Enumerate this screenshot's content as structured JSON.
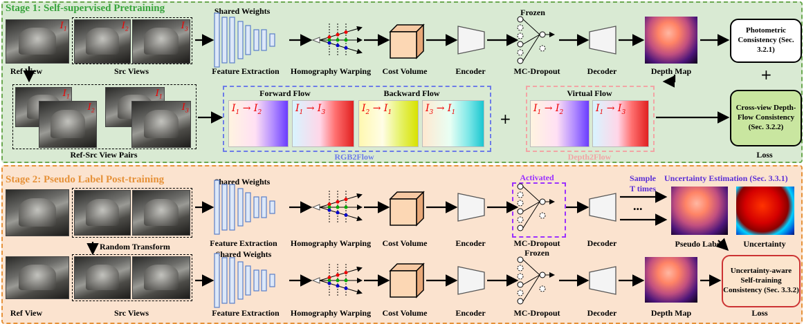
{
  "stage1": {
    "title": "Stage 1: Self-supervised Pretraining",
    "title_color": "#38a33c",
    "ref_view": "Ref View",
    "src_views": "Src Views",
    "shared_weights": "Shared Weights",
    "feature_extraction": "Feature Extraction",
    "homography_warping": "Homography Warping",
    "cost_volume": "Cost Volume",
    "encoder": "Encoder",
    "frozen": "Frozen",
    "mc_dropout": "MC-Dropout",
    "decoder": "Decoder",
    "depth_map": "Depth Map",
    "photometric": "Photometric Consistency (Sec. 3.2.1)",
    "plus": "+",
    "crossview": "Cross-view Depth-Flow Consistency (Sec. 3.2.2)",
    "loss": "Loss",
    "ref_src_pairs": "Ref-Src View Pairs",
    "forward_flow": "Forward Flow",
    "backward_flow": "Backward Flow",
    "virtual_flow": "Virtual Flow",
    "rgb2flow": "RGB2Flow",
    "depth2flow": "Depth2Flow",
    "image_tags": [
      "I1",
      "I2",
      "I3"
    ],
    "flows": [
      "I1 → I2",
      "I1 → I3",
      "I2 → I1",
      "I3 → I1"
    ],
    "virtual_flows": [
      "I1 → I2",
      "I1 → I3"
    ]
  },
  "stage2": {
    "title": "Stage 2: Pseudo Label Post-training",
    "title_color": "#e69138",
    "shared_weights_top": "Shared Weights",
    "shared_weights_bottom": "Shared Weights",
    "activated": "Activated",
    "sample": "Sample T times",
    "dots": "...",
    "uncertainty_estimation": "Uncertainty Estimation (Sec. 3.3.1)",
    "random_transform": "Random Transform",
    "feature_extraction": "Feature Extraction",
    "homography_warping": "Homography Warping",
    "cost_volume": "Cost Volume",
    "encoder": "Encoder",
    "mc_dropout": "MC-Dropout",
    "decoder": "Decoder",
    "pseudo_label": "Pseudo Label",
    "uncertainty": "Uncertainty",
    "frozen": "Frozen",
    "depth_map": "Depth Map",
    "self_training": "Uncertainty-aware Self-training Consistency (Sec. 3.3.2)",
    "loss": "Loss",
    "ref_view": "Ref View",
    "src_views": "Src Views"
  },
  "colors": {
    "stage1_border": "#6aa84f",
    "stage2_border": "#e69138",
    "rgb2flow": "#6d7ce8",
    "depth2flow": "#f2a5a5",
    "activated": "#9b30ff",
    "uncertainty_title": "#5b2fd6",
    "crossview_fill": "#c9e6a0",
    "selftrain_fill": "#fce5cd",
    "selftrain_border": "#cc3333"
  }
}
